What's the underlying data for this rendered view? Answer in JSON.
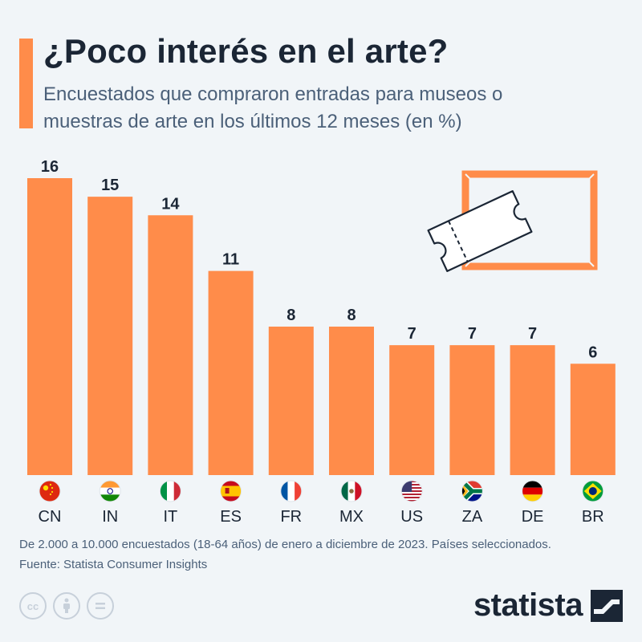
{
  "title": "¿Poco interés en el arte?",
  "subtitle": "Encuestados que compraron entradas para museos o muestras de arte en los últimos 12 meses (en %)",
  "chart_data": {
    "type": "bar",
    "categories": [
      "CN",
      "IN",
      "IT",
      "ES",
      "FR",
      "MX",
      "US",
      "ZA",
      "DE",
      "BR"
    ],
    "values": [
      16,
      15,
      14,
      11,
      8,
      8,
      7,
      7,
      7,
      6
    ],
    "ylim": [
      0,
      16
    ],
    "grid": false,
    "bar_color": "#ff8c4a",
    "data_labels": true,
    "category_icons": [
      "flag-cn",
      "flag-in",
      "flag-it",
      "flag-es",
      "flag-fr",
      "flag-mx",
      "flag-us",
      "flag-za",
      "flag-de",
      "flag-br"
    ]
  },
  "illustration": [
    "picture-frame-icon",
    "ticket-icon"
  ],
  "footnote": {
    "line1": "De 2.000 a 10.000 encuestados (18-64 años) de enero a diciembre de 2023. Países seleccionados.",
    "line2": "Fuente: Statista Consumer Insights"
  },
  "license_icons": [
    "cc-icon",
    "attribution-icon",
    "no-derivatives-icon"
  ],
  "brand": {
    "name": "statista"
  },
  "colors": {
    "accent": "#ff8c4a",
    "title": "#1b2635",
    "subtitle": "#4b6079",
    "background": "#f1f5f8"
  }
}
